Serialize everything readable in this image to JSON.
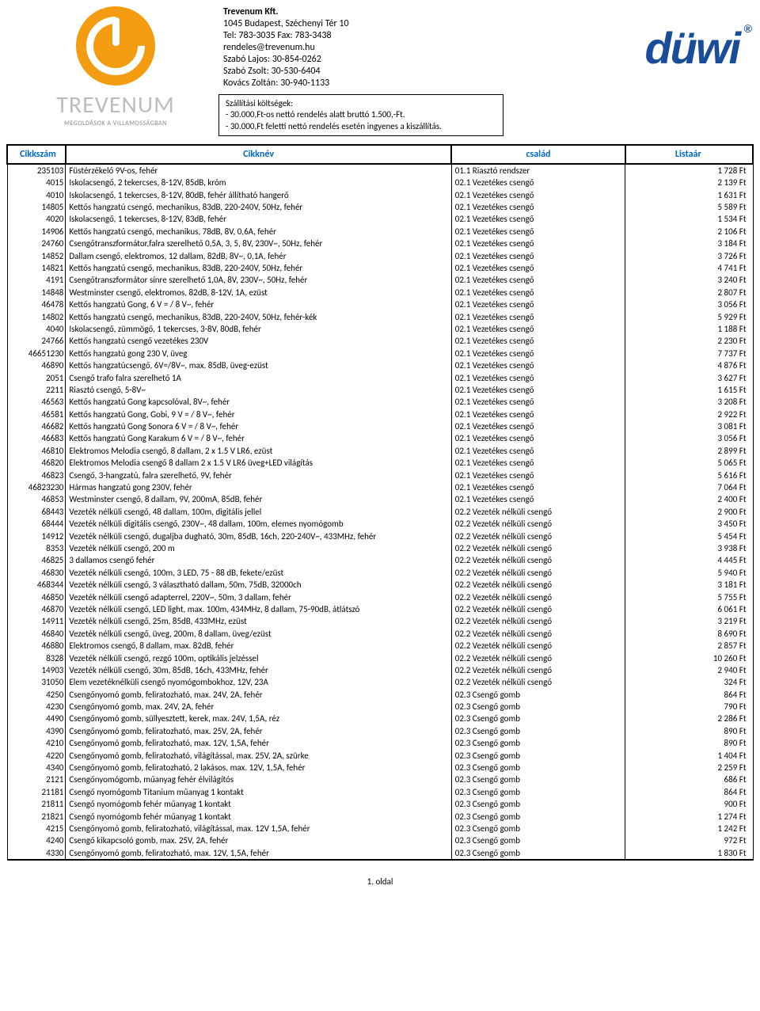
{
  "company": {
    "name": "Trevenum Kft.",
    "address": "1045 Budapest, Széchenyi Tér 10",
    "tel": "Tel: 783-3035 Fax: 783-3438",
    "email": "rendeles@trevenum.hu",
    "contacts": [
      "Szabó Lajos: 30-854-0262",
      "Szabó Zsolt: 30-530-6404",
      "Kovács Zoltán: 30-940-1133"
    ]
  },
  "brand_text": "TREVENUM",
  "brand_sub": "MEGOLDÁSOK A VILLAMOSSÁGBAN",
  "right_brand": "düwi",
  "shipping": {
    "title": "Szállítási költségek:",
    "lines": [
      "- 30.000,Ft-os nettó rendelés alatt bruttó 1.500,-Ft.",
      "- 30.000,Ft feletti nettó rendelés esetén ingyenes a kiszállítás."
    ]
  },
  "columns": {
    "sku": "Cikkszám",
    "name": "Cikknév",
    "family": "család",
    "price": "Listaár"
  },
  "rows": [
    {
      "sku": "235103",
      "name": "Füstérzékelő 9V-os, fehér",
      "family": "01.1 Riasztó rendszer",
      "price": "1 728 Ft"
    },
    {
      "sku": "4015",
      "name": "Iskolacsengő, 2 tekercses, 8-12V, 85dB, króm",
      "family": "02.1 Vezetékes csengő",
      "price": "2 139 Ft"
    },
    {
      "sku": "4010",
      "name": "Iskolacsengő, 1 tekercses, 8-12V, 80dB, fehér állítható hangerő",
      "family": "02.1 Vezetékes csengő",
      "price": "1 631 Ft"
    },
    {
      "sku": "14805",
      "name": "Kettős hangzatú csengő, mechanikus, 83dB, 220-240V, 50Hz, fehér",
      "family": "02.1 Vezetékes csengő",
      "price": "5 589 Ft"
    },
    {
      "sku": "4020",
      "name": "Iskolacsengő, 1 tekercses, 8-12V, 83dB, fehér",
      "family": "02.1 Vezetékes csengő",
      "price": "1 534 Ft"
    },
    {
      "sku": "14906",
      "name": "Kettős hangzatú csengő, mechanikus, 78dB, 8V, 0,6A, fehér",
      "family": "02.1 Vezetékes csengő",
      "price": "2 106 Ft"
    },
    {
      "sku": "24760",
      "name": "Csengőtranszformátor,falra szerelhető 0,5A, 3, 5, 8V, 230V~, 50Hz, fehér",
      "family": "02.1 Vezetékes csengő",
      "price": "3 184 Ft"
    },
    {
      "sku": "14852",
      "name": "Dallam csengő, elektromos, 12 dallam, 82dB, 8V~, 0,1A, fehér",
      "family": "02.1 Vezetékes csengő",
      "price": "3 726 Ft"
    },
    {
      "sku": "14821",
      "name": "Kettős hangzatú csengő, mechanikus, 83dB, 220-240V, 50Hz, fehér",
      "family": "02.1 Vezetékes csengő",
      "price": "4 741 Ft"
    },
    {
      "sku": "4191",
      "name": "Csengőtranszformátor sínre szerelhető 1,0A, 8V, 230V~, 50Hz, fehér",
      "family": "02.1 Vezetékes csengő",
      "price": "3 240 Ft"
    },
    {
      "sku": "14848",
      "name": "Westminster csengő, elektromos, 82dB, 8-12V, 1A, ezüst",
      "family": "02.1 Vezetékes csengő",
      "price": "2 807 Ft"
    },
    {
      "sku": "46478",
      "name": "Kettős hangzatú Gong, 6 V = / 8 V~, fehér",
      "family": "02.1 Vezetékes csengő",
      "price": "3 056 Ft"
    },
    {
      "sku": "14802",
      "name": "Kettős hangzatú csengő, mechanikus, 83dB, 220-240V, 50Hz, fehér-kék",
      "family": "02.1 Vezetékes csengő",
      "price": "5 929 Ft"
    },
    {
      "sku": "4040",
      "name": "Iskolacsengő, zümmögő, 1 tekercses, 3-8V, 80dB, fehér",
      "family": "02.1 Vezetékes csengő",
      "price": "1 188 Ft"
    },
    {
      "sku": "24766",
      "name": "Kettős hangzatú csengő vezetékes 230V",
      "family": "02.1 Vezetékes csengő",
      "price": "2 230 Ft"
    },
    {
      "sku": "46651230",
      "name": "Kettős hangzatú gong 230 V, üveg",
      "family": "02.1 Vezetékes csengő",
      "price": "7 737 Ft"
    },
    {
      "sku": "46890",
      "name": "Kettős hangzatúcsengő, 6V=/8V~, max. 85dB, üveg-ezüst",
      "family": "02.1 Vezetékes csengő",
      "price": "4 876 Ft"
    },
    {
      "sku": "2051",
      "name": "Csengő trafo falra szerelhető 1A",
      "family": "02.1 Vezetékes csengő",
      "price": "3 627 Ft"
    },
    {
      "sku": "2211",
      "name": "Riasztó csengő, 5-8V~",
      "family": "02.1 Vezetékes csengő",
      "price": "1 615 Ft"
    },
    {
      "sku": "46563",
      "name": "Kettős hangzatú Gong kapcsolóval, 8V~, fehér",
      "family": "02.1 Vezetékes csengő",
      "price": "3 208 Ft"
    },
    {
      "sku": "46581",
      "name": "Kettős hangzatú Gong, Gobi, 9 V = / 8 V~, fehér",
      "family": "02.1 Vezetékes csengő",
      "price": "2 922 Ft"
    },
    {
      "sku": "46682",
      "name": "Kettős hangzatú Gong Sonora 6 V = / 8 V~, fehér",
      "family": "02.1 Vezetékes csengő",
      "price": "3 081 Ft"
    },
    {
      "sku": "46683",
      "name": "Kettős hangzatú Gong Karakum 6 V = / 8 V~, fehér",
      "family": "02.1 Vezetékes csengő",
      "price": "3 056 Ft"
    },
    {
      "sku": "46810",
      "name": "Elektromos Melodia csengő, 8 dallam, 2 x 1.5 V LR6, ezüst",
      "family": "02.1 Vezetékes csengő",
      "price": "2 899 Ft"
    },
    {
      "sku": "46820",
      "name": "Elektromos Melodia csengő 8 dallam 2 x 1.5 V LR6 üveg+LED világítás",
      "family": "02.1 Vezetékes csengő",
      "price": "5 065 Ft"
    },
    {
      "sku": "46823",
      "name": "Csengő, 3-hangzatú, falra szerelhető, 9V, fehér",
      "family": "02.1 Vezetékes csengő",
      "price": "5 616 Ft"
    },
    {
      "sku": "46823230",
      "name": "Hármas hangzatú gong 230V, fehér",
      "family": "02.1 Vezetékes csengő",
      "price": "7 064 Ft"
    },
    {
      "sku": "46853",
      "name": "Westminster csengő, 8 dallam, 9V, 200mA, 85dB, fehér",
      "family": "02.1 Vezetékes csengő",
      "price": "2 400 Ft"
    },
    {
      "sku": "68443",
      "name": "Vezeték nélküli csengő, 48 dallam, 100m, digitális jellel",
      "family": "02.2 Vezeték nélküli csengő",
      "price": "2 900 Ft"
    },
    {
      "sku": "68444",
      "name": "Vezeték nélküli digitális csengő, 230V~, 48 dallam, 100m, elemes nyomógomb",
      "family": "02.2 Vezeték nélküli csengő",
      "price": "3 450 Ft"
    },
    {
      "sku": "14912",
      "name": "Vezeték nélküli csengő, dugaljba dugható, 30m, 85dB, 16ch, 220-240V~, 433MHz, fehér",
      "family": "02.2 Vezeték nélküli csengő",
      "price": "5 454 Ft"
    },
    {
      "sku": "8353",
      "name": "Vezeték nélküli csengő, 200 m",
      "family": "02.2 Vezeték nélküli csengő",
      "price": "3 938 Ft"
    },
    {
      "sku": "46825",
      "name": "3 dallamos csengő fehér",
      "family": "02.2 Vezeték nélküli csengő",
      "price": "4 445 Ft"
    },
    {
      "sku": "46830",
      "name": "Vezeték nélküli csengő, 100m, 3 LED, 75 - 88 dB, fekete/ezüst",
      "family": "02.2 Vezeték nélküli csengő",
      "price": "5 940 Ft"
    },
    {
      "sku": "468344",
      "name": "Vezeték nélküli csengő, 3 választható dallam, 50m, 75dB, 32000ch",
      "family": "02.2 Vezeték nélküli csengő",
      "price": "3 181 Ft"
    },
    {
      "sku": "46850",
      "name": "Vezeték nélküli csengő adapterrel, 220V~, 50m, 3 dallam, fehér",
      "family": "02.2 Vezeték nélküli csengő",
      "price": "5 755 Ft"
    },
    {
      "sku": "46870",
      "name": "Vezeték nélküli csengő, LED light, max. 100m, 434MHz, 8 dallam, 75-90dB, átlátszó",
      "family": "02.2 Vezeték nélküli csengő",
      "price": "6 061 Ft"
    },
    {
      "sku": "14911",
      "name": "Vezeték nélküli csengő, 25m, 85dB, 433MHz, ezüst",
      "family": "02.2 Vezeték nélküli csengő",
      "price": "3 219 Ft"
    },
    {
      "sku": "46840",
      "name": "Vezeték nélküli csengő, üveg, 200m, 8 dallam, üveg/ezüst",
      "family": "02.2 Vezeték nélküli csengő",
      "price": "8 690 Ft"
    },
    {
      "sku": "46880",
      "name": "Elektromos csengő, 8 dallam, max. 82dB, fehér",
      "family": "02.2 Vezeték nélküli csengő",
      "price": "2 857 Ft"
    },
    {
      "sku": "8328",
      "name": "Vezeték nélküli csengő, rezgő 100m, optikális jelzéssel",
      "family": "02.2 Vezeték nélküli csengő",
      "price": "10 260 Ft"
    },
    {
      "sku": "14903",
      "name": "Vezeték nélküli csengő, 30m, 85dB, 16ch, 433MHz, fehér",
      "family": "02.2 Vezeték nélküli csengő",
      "price": "2 940 Ft"
    },
    {
      "sku": "31050",
      "name": "Elem vezetéknélküli csengő nyomógombokhoz, 12V, 23A",
      "family": "02.2 Vezeték nélküli csengő",
      "price": "324 Ft"
    },
    {
      "sku": "4250",
      "name": "Csengőnyomó gomb, feliratozható, max. 24V, 2A, fehér",
      "family": "02.3 Csengő gomb",
      "price": "864 Ft"
    },
    {
      "sku": "4230",
      "name": "Csengőnyomó gomb, max. 24V, 2A, fehér",
      "family": "02.3 Csengő gomb",
      "price": "790 Ft"
    },
    {
      "sku": "4490",
      "name": "Csengőnyomó gomb, süllyesztett, kerek, max. 24V, 1,5A, réz",
      "family": "02.3 Csengő gomb",
      "price": "2 286 Ft"
    },
    {
      "sku": "4390",
      "name": "Csengőnyomó gomb, feliratozható, max. 25V, 2A, fehér",
      "family": "02.3 Csengő gomb",
      "price": "890 Ft"
    },
    {
      "sku": "4210",
      "name": "Csengőnyomó gomb, feliratozható, max. 12V, 1,5A, fehér",
      "family": "02.3 Csengő gomb",
      "price": "890 Ft"
    },
    {
      "sku": "4220",
      "name": "Csengőnyomó gomb, feliratozható, világítással, max. 25V, 2A, szürke",
      "family": "02.3 Csengő gomb",
      "price": "1 404 Ft"
    },
    {
      "sku": "4340",
      "name": "Csengőnyomó gomb, feliratozható, 2 lakásos, max. 12V, 1,5A, fehér",
      "family": "02.3 Csengő gomb",
      "price": "2 259 Ft"
    },
    {
      "sku": "2121",
      "name": "Csengőnyomógomb, műanyag fehér élvilágítós",
      "family": "02.3 Csengő gomb",
      "price": "686 Ft"
    },
    {
      "sku": "21181",
      "name": "Csengő nyomógomb Titanium műanyag 1 kontakt",
      "family": "02.3 Csengő gomb",
      "price": "864 Ft"
    },
    {
      "sku": "21811",
      "name": "Csengő nyomógomb fehér műanyag 1 kontakt",
      "family": "02.3 Csengő gomb",
      "price": "900 Ft"
    },
    {
      "sku": "21821",
      "name": "Csengő nyomógomb fehér műanyag 1 kontakt",
      "family": "02.3 Csengő gomb",
      "price": "1 274 Ft"
    },
    {
      "sku": "4215",
      "name": "Csengőnyomó gomb, feliratozható, világítással, max. 12V 1,5A, fehér",
      "family": "02.3 Csengő gomb",
      "price": "1 242 Ft"
    },
    {
      "sku": "4240",
      "name": "Csengő kikapcsoló gomb, max. 25V, 2A, fehér",
      "family": "02.3 Csengő gomb",
      "price": "972 Ft"
    },
    {
      "sku": "4330",
      "name": "Csengőnyomó gomb, feliratozható, max. 12V, 1,5A, fehér",
      "family": "02.3 Csengő gomb",
      "price": "1 830 Ft"
    }
  ],
  "footer": "1. oldal"
}
